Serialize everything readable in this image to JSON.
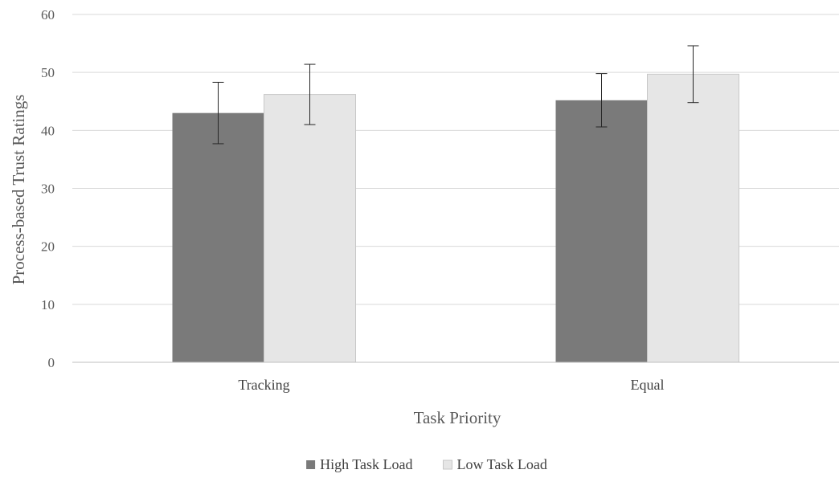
{
  "chart_data": {
    "type": "bar",
    "title": "",
    "xlabel": "Task Priority",
    "ylabel": "Process-based Trust Ratings",
    "categories": [
      "Tracking",
      "Equal"
    ],
    "series": [
      {
        "name": "High Task Load",
        "color": "#7a7a7a",
        "values": [
          43.0,
          45.2
        ],
        "error": [
          5.3,
          4.6
        ]
      },
      {
        "name": "Low Task Load",
        "color": "#e6e6e6",
        "values": [
          46.2,
          49.7
        ],
        "error": [
          5.2,
          4.9
        ]
      }
    ],
    "ylim": [
      0,
      60
    ],
    "yticks": [
      0,
      10,
      20,
      30,
      40,
      50,
      60
    ],
    "grid": true,
    "legend_position": "bottom"
  }
}
